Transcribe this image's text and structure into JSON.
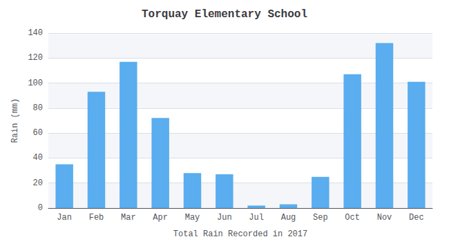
{
  "chart_data": {
    "type": "bar",
    "title": "Torquay Elementary School",
    "xlabel": "Total Rain Recorded in 2017",
    "ylabel": "Rain (mm)",
    "categories": [
      "Jan",
      "Feb",
      "Mar",
      "Apr",
      "May",
      "Jun",
      "Jul",
      "Aug",
      "Sep",
      "Oct",
      "Nov",
      "Dec"
    ],
    "values": [
      35,
      93,
      117,
      72,
      28,
      27,
      2,
      3,
      25,
      107,
      132,
      101
    ],
    "color": "#5aadee",
    "ylim": [
      0,
      140
    ],
    "yticks": [
      0,
      20,
      40,
      60,
      80,
      100,
      120,
      140
    ],
    "grid": true
  }
}
